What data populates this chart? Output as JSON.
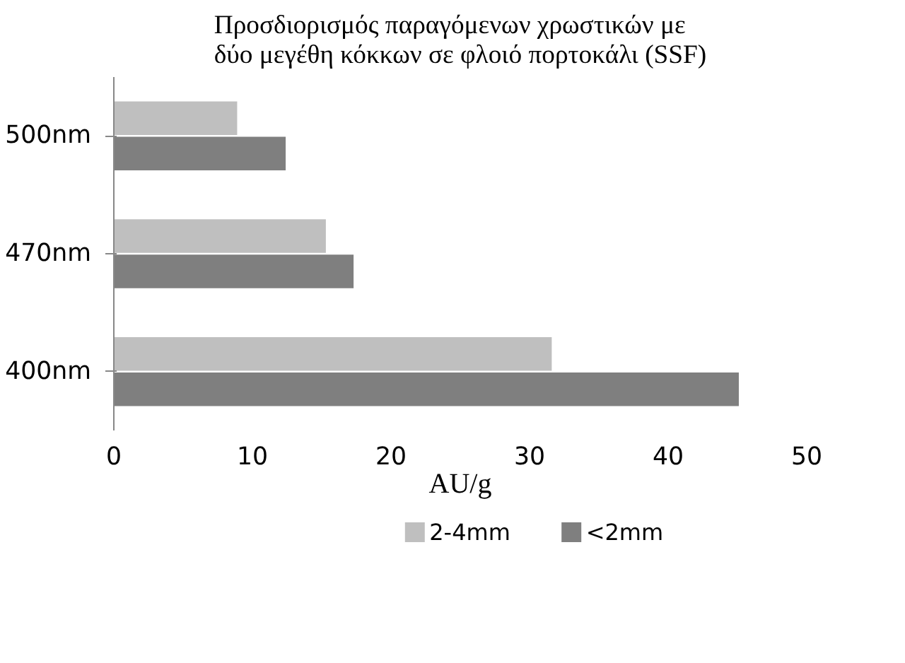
{
  "chart_data": {
    "type": "bar",
    "orientation": "horizontal",
    "title": "Προσδιορισμός παραγόμενων χρωστικών με\nδύο μεγέθη κόκκων σε φλοιό πορτοκάλι (SSF)",
    "xlabel": "AU/g",
    "categories": [
      "500nm",
      "470nm",
      "400nm"
    ],
    "series": [
      {
        "name": "2-4mm",
        "color": "#bfbfbf",
        "values": [
          8.9,
          15.3,
          31.6
        ]
      },
      {
        "name": "<2mm",
        "color": "#7f7f7f",
        "values": [
          12.4,
          17.3,
          45.1
        ]
      }
    ],
    "xlim": [
      0,
      50
    ],
    "xticks": [
      0,
      10,
      20,
      30,
      40,
      50
    ],
    "grid": false,
    "legend": "bottom"
  }
}
